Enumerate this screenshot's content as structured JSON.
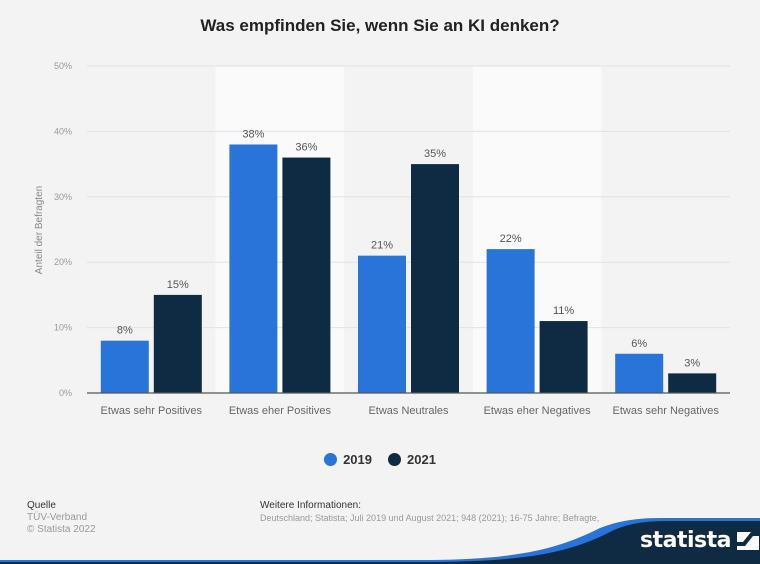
{
  "chart_data": {
    "type": "bar",
    "title": "Was empfinden Sie, wenn Sie an KI denken?",
    "xlabel": "",
    "ylabel": "Anteil der Befragten",
    "ylim": [
      0,
      50
    ],
    "yticks": [
      "0%",
      "10%",
      "20%",
      "30%",
      "40%",
      "50%"
    ],
    "ytick_values": [
      0,
      10,
      20,
      30,
      40,
      50
    ],
    "grid": true,
    "legend_position": "bottom",
    "categories": [
      "Etwas sehr Positives",
      "Etwas eher Positives",
      "Etwas Neutrales",
      "Etwas eher Negatives",
      "Etwas sehr Negatives"
    ],
    "series": [
      {
        "name": "2019",
        "color": "#2874d9",
        "values": [
          8,
          38,
          21,
          22,
          6
        ],
        "labels": [
          "8%",
          "38%",
          "21%",
          "22%",
          "6%"
        ]
      },
      {
        "name": "2021",
        "color": "#0f2a43",
        "values": [
          15,
          36,
          35,
          11,
          3
        ],
        "labels": [
          "15%",
          "36%",
          "35%",
          "11%",
          "3%"
        ]
      }
    ]
  },
  "footer": {
    "source_heading": "Quelle",
    "source_name": "TÜV-Verband",
    "copyright": "© Statista 2022",
    "info_heading": "Weitere Informationen:",
    "info_text": "Deutschland; Statista; Juli 2019 und August 2021; 948 (2021); 16-75 Jahre; Befragte, die den B...",
    "brand": "statista",
    "brand_dark": "#0f2a43",
    "brand_blue": "#2874d9"
  }
}
